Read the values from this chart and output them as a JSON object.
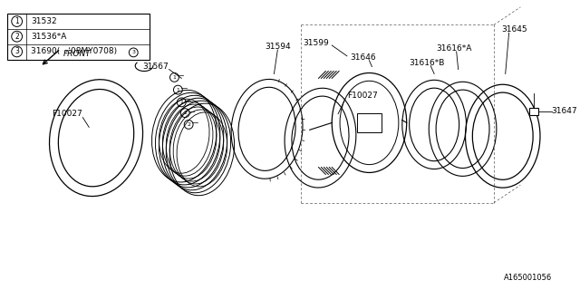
{
  "bg_color": "#ffffff",
  "line_color": "#000000",
  "legend_items": [
    {
      "num": "1",
      "label": "31532"
    },
    {
      "num": "2",
      "label": "31536*A"
    },
    {
      "num": "3",
      "label": "31690(  -‘08MY0708)"
    }
  ],
  "footer_text": "A165001056"
}
